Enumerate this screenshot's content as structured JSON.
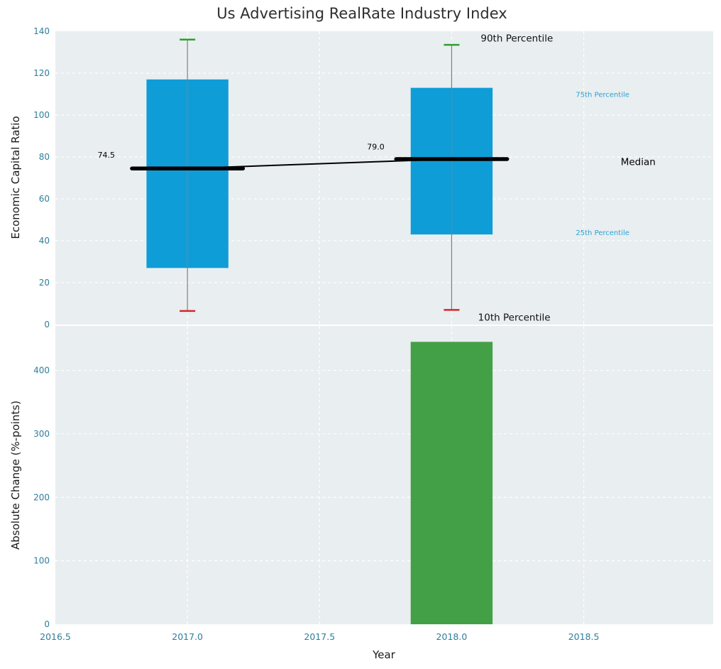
{
  "chart_data": {
    "type": "bar",
    "subtype": "percentile-box-ranges-with-change-bar",
    "title": "Us Advertising RealRate Industry Index",
    "xlabel": "Year",
    "xlim": [
      2016.5,
      2018.99
    ],
    "x_ticks": [
      2016.5,
      2017.0,
      2017.5,
      2018.0,
      2018.5
    ],
    "x_tick_labels": [
      "2016.5",
      "2017.0",
      "2017.5",
      "2018.0",
      "2018.5"
    ],
    "box_width": 0.31,
    "median_width": 0.42,
    "grid": true,
    "legend": "none",
    "panels": [
      {
        "name": "economic-capital-ratio",
        "ylabel": "Economic Capital Ratio",
        "ylim": [
          0,
          140
        ],
        "y_ticks": [
          0,
          20,
          40,
          60,
          80,
          100,
          120,
          140
        ],
        "boxes": [
          {
            "x": 2017,
            "p10": 6.5,
            "q1": 27,
            "median": 74.5,
            "q3": 117,
            "p90": 136,
            "label": "74.5"
          },
          {
            "x": 2018,
            "p10": 7,
            "q1": 43,
            "median": 79.0,
            "q3": 113,
            "p90": 133.5,
            "label": "79.0"
          }
        ],
        "median_line": [
          {
            "x": 2017,
            "y": 74.5
          },
          {
            "x": 2018,
            "y": 79.0
          }
        ],
        "annotations": [
          {
            "text": "74.5",
            "x": 2016.66,
            "y": 81,
            "size": 11,
            "color": "#000000"
          },
          {
            "text": "79.0",
            "x": 2017.68,
            "y": 85,
            "size": 11,
            "color": "#000000"
          },
          {
            "text": "90th Percentile",
            "x": 2018.11,
            "y": 136.5,
            "size": 13.5,
            "color": "#111111"
          },
          {
            "text": "75th Percentile",
            "x": 2018.47,
            "y": 110,
            "size": 10,
            "color": "#2aa3d4"
          },
          {
            "text": "Median",
            "x": 2018.64,
            "y": 77.5,
            "size": 13.5,
            "color": "#000000"
          },
          {
            "text": "25th Percentile",
            "x": 2018.47,
            "y": 44,
            "size": 10,
            "color": "#2aa3d4"
          },
          {
            "text": "10th Percentile",
            "x": 2018.1,
            "y": 3.3,
            "size": 13.5,
            "color": "#111111"
          }
        ]
      },
      {
        "name": "absolute-change",
        "ylabel": "Absolute Change (%-points)",
        "ylim": [
          0,
          470
        ],
        "y_ticks": [
          0,
          100,
          200,
          300,
          400
        ],
        "bars": [
          {
            "x": 2018,
            "value": 445
          }
        ]
      }
    ],
    "colors": {
      "panel_bg": "#e9eef0",
      "grid": "#ffffff",
      "tick": "#2e7e9b",
      "box": "#0f9dd8",
      "bar": "#43a047",
      "cap_high": "#2ca02c",
      "cap_low": "#d62728",
      "median": "#000000",
      "whisker": "#7f7f7f",
      "annotation_blue": "#2aa3d4"
    }
  }
}
